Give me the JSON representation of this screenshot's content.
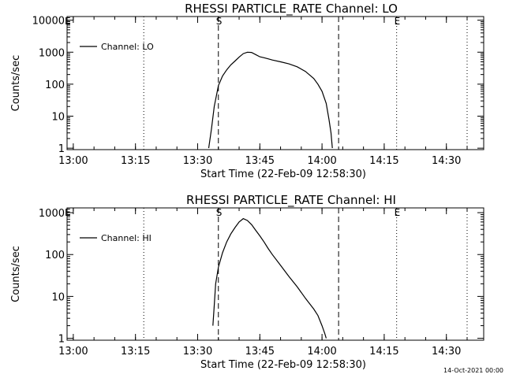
{
  "footer": {
    "date_stamp": "14-Oct-2021 00:00"
  },
  "chart_data": [
    {
      "type": "line",
      "title": "RHESSI PARTICLE_RATE Channel: LO",
      "xlabel": "Start Time (22-Feb-09 12:58:30)",
      "ylabel": "Counts/sec",
      "yscale": "log",
      "xlim": [
        "12:58:30",
        "14:39:00"
      ],
      "ylim": [
        0.9,
        13000
      ],
      "xticks": [
        "13:00",
        "13:15",
        "13:30",
        "13:45",
        "14:00",
        "14:15",
        "14:30"
      ],
      "yticks": [
        "1",
        "10",
        "100",
        "1000",
        "10000"
      ],
      "legend": {
        "position": "top-left",
        "entries": [
          "Channel: LO"
        ]
      },
      "markers": [
        {
          "label": "E",
          "time": "12:58:30",
          "style": "dotted"
        },
        {
          "label": "S",
          "time": "13:35:00",
          "style": "dashed"
        },
        {
          "label": "",
          "time": "14:04:00",
          "style": "dashed"
        },
        {
          "label": "E",
          "time": "14:18:00",
          "style": "dotted"
        },
        {
          "label": "",
          "time": "14:35:00",
          "style": "dotted"
        },
        {
          "label": "",
          "time": "13:17:00",
          "style": "dotted"
        }
      ],
      "series": [
        {
          "name": "Channel: LO",
          "x": [
            "13:32:40",
            "13:33:20",
            "13:34:00",
            "13:35:00",
            "13:36:00",
            "13:37:00",
            "13:38:00",
            "13:39:00",
            "13:40:00",
            "13:41:00",
            "13:42:00",
            "13:43:00",
            "13:44:00",
            "13:45:00",
            "13:46:00",
            "13:47:00",
            "13:48:00",
            "13:50:00",
            "13:52:00",
            "13:54:00",
            "13:56:00",
            "13:58:00",
            "13:59:00",
            "14:00:00",
            "14:01:00",
            "14:01:40",
            "14:02:10",
            "14:02:30"
          ],
          "y": [
            1,
            4,
            20,
            90,
            180,
            280,
            400,
            530,
            700,
            900,
            1000,
            980,
            840,
            720,
            670,
            620,
            570,
            500,
            430,
            350,
            250,
            150,
            100,
            60,
            25,
            8,
            3,
            1
          ]
        }
      ]
    },
    {
      "type": "line",
      "title": "RHESSI PARTICLE_RATE Channel: HI",
      "xlabel": "Start Time (22-Feb-09 12:58:30)",
      "ylabel": "Counts/sec",
      "yscale": "log",
      "xlim": [
        "12:58:30",
        "14:39:00"
      ],
      "ylim": [
        0.9,
        1300
      ],
      "xticks": [
        "13:00",
        "13:15",
        "13:30",
        "13:45",
        "14:00",
        "14:15",
        "14:30"
      ],
      "yticks": [
        "1",
        "10",
        "100",
        "1000"
      ],
      "legend": {
        "position": "top-left",
        "entries": [
          "Channel: HI"
        ]
      },
      "markers": [
        {
          "label": "E",
          "time": "12:58:30",
          "style": "dotted"
        },
        {
          "label": "S",
          "time": "13:35:00",
          "style": "dashed"
        },
        {
          "label": "",
          "time": "14:04:00",
          "style": "dashed"
        },
        {
          "label": "E",
          "time": "14:18:00",
          "style": "dotted"
        },
        {
          "label": "",
          "time": "14:35:00",
          "style": "dotted"
        },
        {
          "label": "",
          "time": "13:17:00",
          "style": "dotted"
        }
      ],
      "series": [
        {
          "name": "Channel: HI",
          "x": [
            "13:33:40",
            "13:34:00",
            "13:34:20",
            "13:35:00",
            "13:36:00",
            "13:37:00",
            "13:38:00",
            "13:39:00",
            "13:40:00",
            "13:41:00",
            "13:42:00",
            "13:43:00",
            "13:44:00",
            "13:45:00",
            "13:46:00",
            "13:47:00",
            "13:48:00",
            "13:50:00",
            "13:52:00",
            "13:54:00",
            "13:56:00",
            "13:58:00",
            "13:59:00",
            "14:00:00",
            "14:00:40",
            "14:01:00"
          ],
          "y": [
            2,
            6,
            20,
            50,
            110,
            200,
            310,
            440,
            600,
            720,
            650,
            520,
            380,
            280,
            200,
            140,
            100,
            55,
            30,
            17,
            9,
            5,
            3.5,
            2,
            1.3,
            1
          ]
        }
      ]
    }
  ]
}
